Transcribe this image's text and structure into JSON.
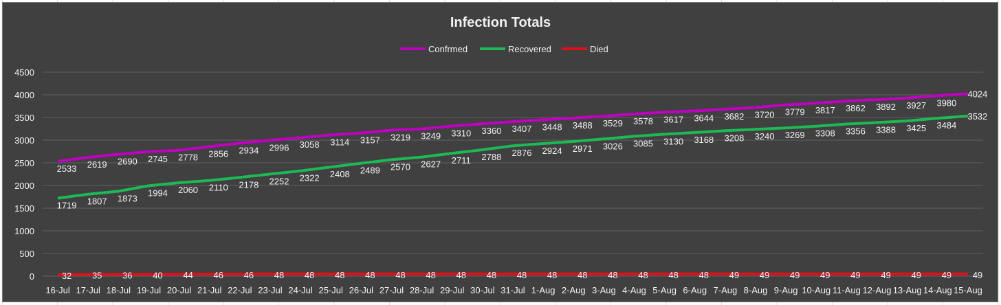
{
  "chart_data": {
    "type": "line",
    "title": "Infection Totals",
    "xlabel": "",
    "ylabel": "",
    "ylim": [
      0,
      4500
    ],
    "yticks": [
      0,
      500,
      1000,
      1500,
      2000,
      2500,
      3000,
      3500,
      4000,
      4500
    ],
    "grid": true,
    "legend_position": "top",
    "background_color": "#404040",
    "categories": [
      "16-Jul",
      "17-Jul",
      "18-Jul",
      "19-Jul",
      "20-Jul",
      "21-Jul",
      "22-Jul",
      "23-Jul",
      "24-Jul",
      "25-Jul",
      "26-Jul",
      "27-Jul",
      "28-Jul",
      "29-Jul",
      "30-Jul",
      "31-Jul",
      "1-Aug",
      "2-Aug",
      "3-Aug",
      "4-Aug",
      "5-Aug",
      "6-Aug",
      "7-Aug",
      "8-Aug",
      "9-Aug",
      "10-Aug",
      "11-Aug",
      "12-Aug",
      "13-Aug",
      "14-Aug",
      "15-Aug"
    ],
    "series": [
      {
        "name": "Confrmed",
        "color": "#c000c0",
        "values": [
          2533,
          2619,
          2690,
          2745,
          2778,
          2856,
          2934,
          2996,
          3058,
          3114,
          3157,
          3219,
          3249,
          3310,
          3360,
          3407,
          3448,
          3488,
          3529,
          3578,
          3617,
          3644,
          3682,
          3720,
          3779,
          3817,
          3862,
          3892,
          3927,
          3980,
          4024
        ]
      },
      {
        "name": "Recovered",
        "color": "#1db954",
        "values": [
          1719,
          1807,
          1873,
          1994,
          2060,
          2110,
          2178,
          2252,
          2322,
          2408,
          2489,
          2570,
          2627,
          2711,
          2788,
          2876,
          2924,
          2971,
          3026,
          3085,
          3130,
          3168,
          3208,
          3240,
          3269,
          3308,
          3356,
          3388,
          3425,
          3484,
          3532
        ]
      },
      {
        "name": "Died",
        "color": "#e0101a",
        "values": [
          32,
          35,
          36,
          40,
          44,
          46,
          46,
          48,
          48,
          48,
          48,
          48,
          48,
          48,
          48,
          48,
          48,
          48,
          48,
          48,
          48,
          48,
          49,
          49,
          49,
          49,
          49,
          49,
          49,
          49,
          49
        ]
      }
    ]
  }
}
